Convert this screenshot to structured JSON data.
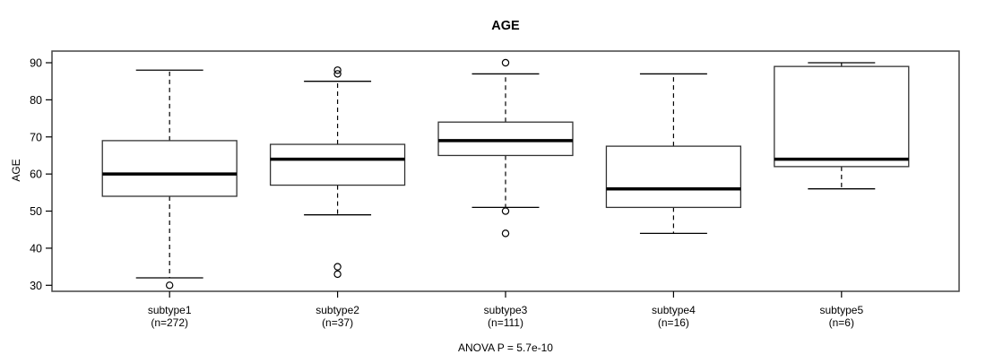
{
  "title": "AGE",
  "y_axis_label": "AGE",
  "footnote": "ANOVA P = 5.7e-10",
  "colors": {
    "background": "#ffffff",
    "box_stroke": "#333333",
    "median_stroke": "#000000",
    "whisker_stroke": "#000000",
    "frame_stroke": "#444444",
    "box_fill": "#ffffff"
  },
  "chart_data": {
    "type": "boxplot",
    "title": "AGE",
    "xlabel": "",
    "ylabel": "AGE",
    "ylim": [
      28,
      93
    ],
    "yticks": [
      30,
      40,
      50,
      60,
      70,
      80,
      90
    ],
    "grid": false,
    "annotation": "ANOVA P = 5.7e-10",
    "groups": [
      {
        "label": "subtype1",
        "sublabel": "(n=272)",
        "n": 272,
        "whisker_low": 32,
        "q1": 54,
        "median": 60,
        "q3": 69,
        "whisker_high": 88,
        "outliers_low": [
          30
        ],
        "outliers_high": []
      },
      {
        "label": "subtype2",
        "sublabel": "(n=37)",
        "n": 37,
        "whisker_low": 49,
        "q1": 57,
        "median": 64,
        "q3": 68,
        "whisker_high": 85,
        "outliers_low": [
          35,
          33
        ],
        "outliers_high": [
          88,
          87
        ]
      },
      {
        "label": "subtype3",
        "sublabel": "(n=111)",
        "n": 111,
        "whisker_low": 51,
        "q1": 65,
        "median": 69,
        "q3": 74,
        "whisker_high": 87,
        "outliers_low": [
          50,
          44
        ],
        "outliers_high": [
          90
        ]
      },
      {
        "label": "subtype4",
        "sublabel": "(n=16)",
        "n": 16,
        "whisker_low": 44,
        "q1": 51,
        "median": 56,
        "q3": 67.5,
        "whisker_high": 87,
        "outliers_low": [],
        "outliers_high": []
      },
      {
        "label": "subtype5",
        "sublabel": "(n=6)",
        "n": 6,
        "whisker_low": 56,
        "q1": 62,
        "median": 64,
        "q3": 89,
        "whisker_high": 90,
        "outliers_low": [],
        "outliers_high": []
      }
    ]
  }
}
